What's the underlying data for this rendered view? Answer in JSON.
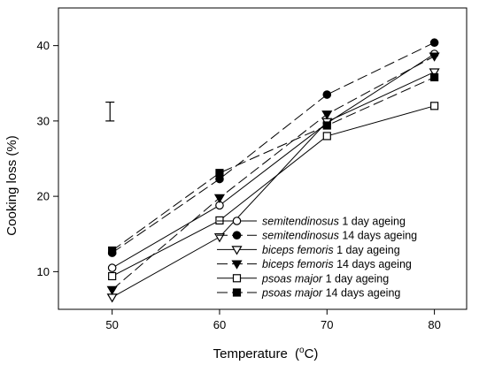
{
  "chart_data": {
    "type": "line",
    "xlabel": "Temperature",
    "xlabel_unit_prefix": "(",
    "xlabel_unit_sup": "o",
    "xlabel_unit_suffix": "C)",
    "ylabel": "Cooking loss (%)",
    "xlim": [
      45,
      83
    ],
    "ylim": [
      5,
      45
    ],
    "xticks": [
      50,
      60,
      70,
      80
    ],
    "yticks": [
      10,
      20,
      30,
      40
    ],
    "grid": false,
    "legend_position": "bottom-right",
    "x": [
      50,
      60,
      70,
      80
    ],
    "series": [
      {
        "name_italic": "semitendinosus",
        "name_rest": " 1 day ageing",
        "marker": "open-circle",
        "dash": "solid",
        "values": [
          10.5,
          18.8,
          29.7,
          38.9
        ]
      },
      {
        "name_italic": "semitendinosus",
        "name_rest": " 14 days ageing",
        "marker": "filled-circle",
        "dash": "dashed",
        "values": [
          12.5,
          22.3,
          33.5,
          40.4
        ]
      },
      {
        "name_italic": "biceps femoris",
        "name_rest": " 1 day ageing",
        "marker": "open-triangle-down",
        "dash": "solid",
        "values": [
          6.6,
          14.6,
          29.9,
          36.5
        ]
      },
      {
        "name_italic": "biceps femoris",
        "name_rest": " 14 days ageing",
        "marker": "filled-triangle-down",
        "dash": "dashed",
        "values": [
          7.6,
          19.8,
          30.9,
          38.6
        ]
      },
      {
        "name_italic": "psoas major",
        "name_rest": " 1 day ageing",
        "marker": "open-square",
        "dash": "solid",
        "values": [
          9.4,
          16.8,
          28.0,
          32.0
        ]
      },
      {
        "name_italic": "psoas major",
        "name_rest": " 14 days ageing",
        "marker": "filled-square",
        "dash": "dashed",
        "values": [
          12.8,
          23.1,
          29.4,
          35.8
        ]
      }
    ],
    "error_bar": {
      "x": 49.8,
      "y_low": 30.0,
      "y_high": 32.5
    }
  }
}
